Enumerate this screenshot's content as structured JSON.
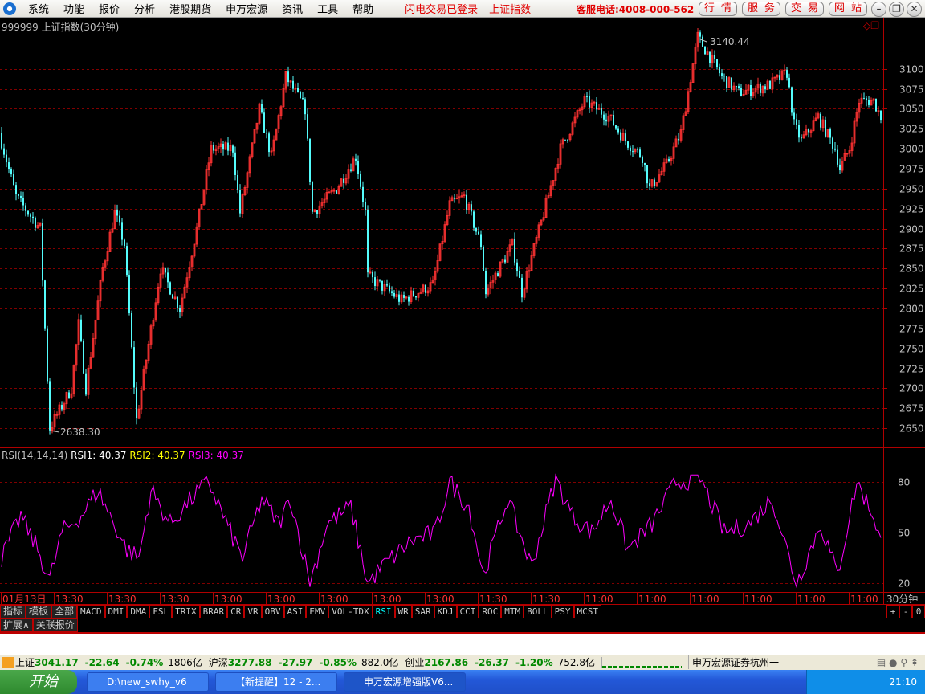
{
  "menubar": {
    "items": [
      "系统",
      "功能",
      "报价",
      "分析",
      "港股期货",
      "申万宏源",
      "资讯",
      "工具",
      "帮助"
    ],
    "status1": "闪电交易已登录",
    "status2": "上证指数",
    "hotline": "客服电话:4008-000-562",
    "buttons": [
      "行情",
      "服务",
      "交易",
      "网站"
    ]
  },
  "chart_title": "999999 上证指数(30分钟)",
  "colors": {
    "up": "#ff3232",
    "down": "#54fcfc",
    "grid": "#800000",
    "rsi3": "#ff00ff",
    "rsi2": "#ffff00",
    "border": "#b00000"
  },
  "chart_data": [
    {
      "type": "candlestick",
      "price_ticks": [
        3100,
        3075,
        3050,
        3025,
        3000,
        2975,
        2950,
        2925,
        2900,
        2875,
        2850,
        2825,
        2800,
        2775,
        2750,
        2725,
        2700,
        2675,
        2650
      ],
      "ylim": [
        2628,
        3146
      ],
      "high_label": "3140.44",
      "low_label": "2638.30",
      "path_bar_price": [
        [
          0,
          3020
        ],
        [
          7,
          2940
        ],
        [
          17,
          2900
        ],
        [
          21,
          2650
        ],
        [
          30,
          2700
        ],
        [
          33,
          2780
        ],
        [
          36,
          2700
        ],
        [
          43,
          2850
        ],
        [
          48,
          2920
        ],
        [
          52,
          2880
        ],
        [
          57,
          2660
        ],
        [
          67,
          2850
        ],
        [
          75,
          2800
        ],
        [
          82,
          2900
        ],
        [
          88,
          3000
        ],
        [
          97,
          3000
        ],
        [
          100,
          2920
        ],
        [
          108,
          3050
        ],
        [
          113,
          2990
        ],
        [
          119,
          3090
        ],
        [
          127,
          3050
        ],
        [
          130,
          2920
        ],
        [
          140,
          2950
        ],
        [
          148,
          2990
        ],
        [
          152,
          2920
        ],
        [
          153,
          2840
        ],
        [
          167,
          2810
        ],
        [
          180,
          2830
        ],
        [
          187,
          2930
        ],
        [
          193,
          2940
        ],
        [
          200,
          2880
        ],
        [
          202,
          2820
        ],
        [
          213,
          2880
        ],
        [
          217,
          2820
        ],
        [
          227,
          2930
        ],
        [
          233,
          3000
        ],
        [
          243,
          3060
        ],
        [
          253,
          3040
        ],
        [
          260,
          3010
        ],
        [
          267,
          2990
        ],
        [
          270,
          2950
        ],
        [
          277,
          2980
        ],
        [
          283,
          3020
        ],
        [
          290,
          3140
        ],
        [
          300,
          3090
        ],
        [
          307,
          3070
        ],
        [
          320,
          3080
        ],
        [
          327,
          3095
        ],
        [
          330,
          3030
        ],
        [
          333,
          3010
        ],
        [
          340,
          3040
        ],
        [
          347,
          3000
        ],
        [
          349,
          2975
        ],
        [
          353,
          3000
        ],
        [
          357,
          3060
        ],
        [
          363,
          3060
        ],
        [
          366,
          3040
        ]
      ],
      "time_labels": [
        "01月13日",
        "13:30",
        "13:30",
        "13:30",
        "13:00",
        "13:00",
        "13:00",
        "13:00",
        "13:00",
        "11:30",
        "11:30",
        "11:00",
        "11:00",
        "11:00",
        "11:00",
        "11:00",
        "11:00"
      ],
      "period_label": "30分钟"
    },
    {
      "type": "line",
      "indicator": "RSI(14,14,14)",
      "legend": [
        {
          "name": "RSI1:",
          "value": "40.37"
        },
        {
          "name": "RSI2:",
          "value": "40.37"
        },
        {
          "name": "RSI3:",
          "value": "40.37"
        }
      ],
      "ticks": [
        80,
        50,
        20
      ],
      "ylim": [
        15,
        87
      ],
      "rsi3_path": [
        [
          0,
          35
        ],
        [
          8,
          60
        ],
        [
          15,
          40
        ],
        [
          20,
          22
        ],
        [
          25,
          50
        ],
        [
          33,
          60
        ],
        [
          40,
          75
        ],
        [
          45,
          60
        ],
        [
          52,
          40
        ],
        [
          57,
          35
        ],
        [
          62,
          75
        ],
        [
          70,
          55
        ],
        [
          80,
          72
        ],
        [
          86,
          80
        ],
        [
          95,
          50
        ],
        [
          100,
          35
        ],
        [
          108,
          70
        ],
        [
          115,
          55
        ],
        [
          120,
          70
        ],
        [
          128,
          20
        ],
        [
          135,
          55
        ],
        [
          145,
          65
        ],
        [
          152,
          20
        ],
        [
          158,
          30
        ],
        [
          170,
          45
        ],
        [
          180,
          50
        ],
        [
          186,
          80
        ],
        [
          194,
          65
        ],
        [
          200,
          25
        ],
        [
          210,
          70
        ],
        [
          220,
          30
        ],
        [
          230,
          82
        ],
        [
          237,
          60
        ],
        [
          245,
          50
        ],
        [
          253,
          70
        ],
        [
          260,
          40
        ],
        [
          270,
          55
        ],
        [
          280,
          80
        ],
        [
          290,
          82
        ],
        [
          300,
          50
        ],
        [
          310,
          55
        ],
        [
          320,
          70
        ],
        [
          330,
          20
        ],
        [
          340,
          55
        ],
        [
          347,
          25
        ],
        [
          355,
          80
        ],
        [
          362,
          60
        ],
        [
          366,
          40
        ]
      ]
    }
  ],
  "tabs": [
    "指标",
    "模板",
    "全部",
    "MACD",
    "DMI",
    "DMA",
    "FSL",
    "TRIX",
    "BRAR",
    "CR",
    "VR",
    "OBV",
    "ASI",
    "EMV",
    "VOL-TDX",
    "RSI",
    "WR",
    "SAR",
    "KDJ",
    "CCI",
    "ROC",
    "MTM",
    "BOLL",
    "PSY",
    "MCST"
  ],
  "active_tab": "RSI",
  "zoom_buttons": [
    "+",
    "-",
    "0"
  ],
  "tabs2": [
    "扩展∧",
    "关联报价"
  ],
  "status": {
    "sh_name": "上证",
    "sh_val": "3041.17",
    "sh_chg": "-22.64",
    "sh_pct": "-0.74%",
    "sh_amt": "1806亿",
    "hs_name": "沪深",
    "hs_val": "3277.88",
    "hs_chg": "-27.97",
    "hs_pct": "-0.85%",
    "hs_amt": "882.0亿",
    "cy_name": "创业",
    "cy_val": "2167.86",
    "cy_chg": "-26.37",
    "cy_pct": "-1.20%",
    "cy_amt": "752.8亿",
    "broker": "申万宏源证券杭州一"
  },
  "taskbar": {
    "start": "开始",
    "tasks": [
      "D:\\new_swhy_v6",
      "【新提醒】12 - 2...",
      "申万宏源增强版V6..."
    ],
    "clock": "21:10"
  }
}
